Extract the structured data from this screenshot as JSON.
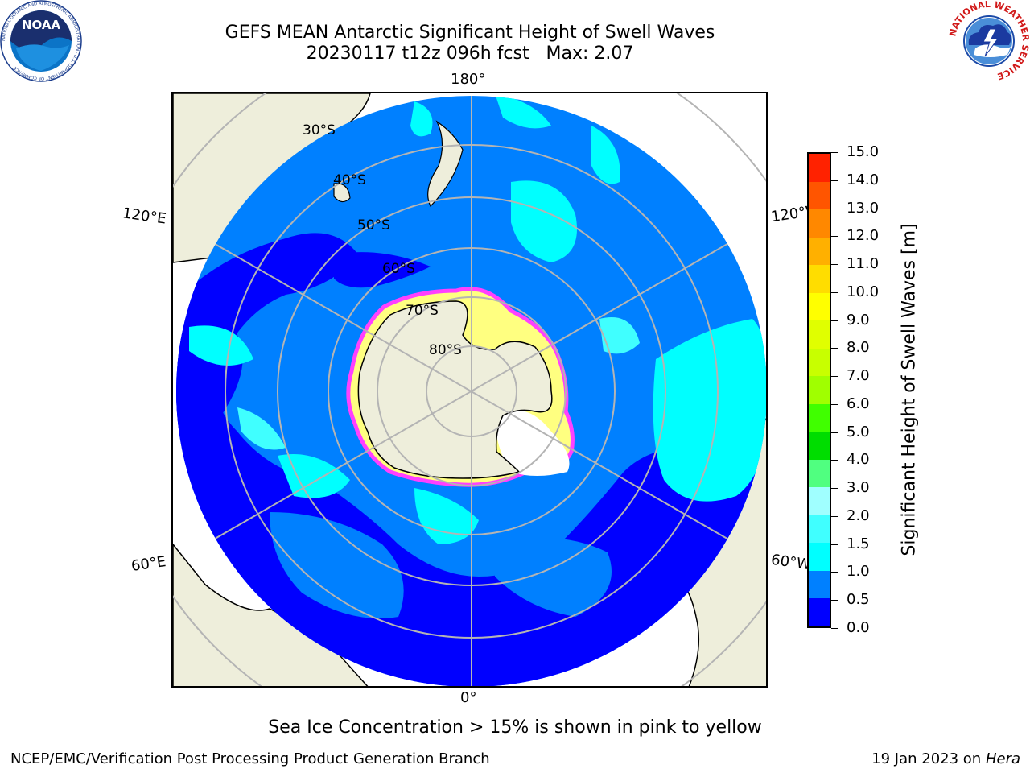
{
  "header": {
    "title_line1": "GEFS MEAN Antarctic Significant Height of Swell Waves",
    "title_line2": "20230117 t12z 096h fcst   Max: 2.07"
  },
  "logos": {
    "noaa_text": "NOAA",
    "noaa_ring_text": "NATIONAL OCEANIC AND ATMOSPHERIC ADMINISTRATION · U.S. DEPARTMENT OF COMMERCE",
    "nws_ring_text": "NATIONAL WEATHER SERVICE"
  },
  "map": {
    "lon_labels": {
      "top": "180°",
      "bottom": "0°",
      "left_upper": "120°E",
      "right_upper": "120°W",
      "left_lower": "60°E",
      "right_lower": "60°W"
    },
    "lat_labels": [
      "30°S",
      "40°S",
      "50°S",
      "60°S",
      "70°S",
      "80°S"
    ],
    "colors": {
      "land": "#eeeedb",
      "ocean_0_05": "#0000ff",
      "ocean_05_1": "#0080ff",
      "ocean_1_15": "#00ffff",
      "ocean_15_2": "#40ffff",
      "ocean_2_3": "#a0ffff",
      "sea_ice_pink": "#ff40ff",
      "sea_ice_yellow": "#ffff80",
      "graticule": "#b4b4b4"
    }
  },
  "colorbar": {
    "label": "Significant Height of Swell Waves [m]",
    "ticks": [
      "0.0",
      "0.5",
      "1.0",
      "1.5",
      "2.0",
      "3.0",
      "4.0",
      "5.0",
      "6.0",
      "7.0",
      "8.0",
      "9.0",
      "10.0",
      "11.0",
      "12.0",
      "13.0",
      "14.0",
      "15.0"
    ],
    "colors": [
      "#0000ff",
      "#0080ff",
      "#00ffff",
      "#40ffff",
      "#a0ffff",
      "#50ff80",
      "#00dd00",
      "#40ff00",
      "#a0ff00",
      "#c8ff00",
      "#e0ff00",
      "#ffff00",
      "#ffdd00",
      "#ffb000",
      "#ff8800",
      "#ff5500",
      "#ff2200"
    ]
  },
  "note": "Sea Ice Concentration > 15% is shown in pink to yellow",
  "footer": {
    "left": "NCEP/EMC/Verification Post Processing Product Generation Branch",
    "right_date": "19 Jan 2023 on ",
    "right_machine": "Hera"
  }
}
